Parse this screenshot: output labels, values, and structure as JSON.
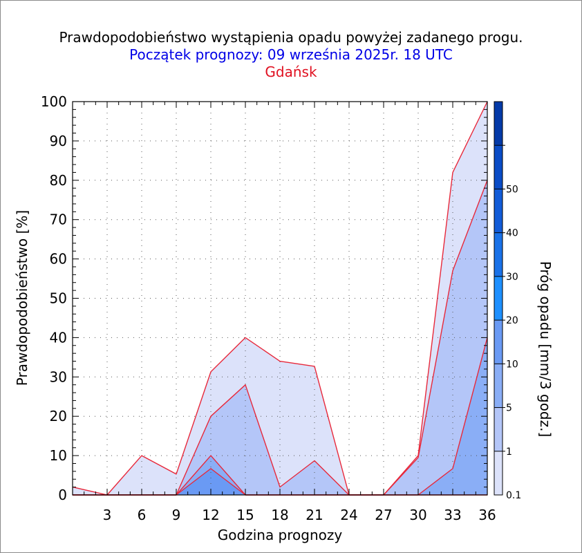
{
  "header": {
    "title": "Prawdopodobieństwo wystąpienia opadu powyżej zadanego progu.",
    "subtitle": "Początek prognozy: 09 września 2025r. 18 UTC",
    "station": "Gdańsk"
  },
  "chart_data": {
    "type": "area",
    "title": "Prawdopodobieństwo wystąpienia opadu powyżej zadanego progu.",
    "subtitle": "Początek prognozy: 09 września 2025r. 18 UTC",
    "xlabel": "Godzina prognozy",
    "ylabel": "Prawdopodobieństwo [%]",
    "xlim": [
      0,
      36
    ],
    "ylim": [
      0,
      100
    ],
    "x_ticks": [
      3,
      6,
      9,
      12,
      15,
      18,
      21,
      24,
      27,
      30,
      33,
      36
    ],
    "y_ticks": [
      0,
      10,
      20,
      30,
      40,
      50,
      60,
      70,
      80,
      90,
      100
    ],
    "grid": true,
    "x": [
      0,
      3,
      6,
      9,
      12,
      15,
      18,
      21,
      24,
      27,
      30,
      33,
      36
    ],
    "series": [
      {
        "name": "0.1",
        "color": "#dce2fa",
        "values": [
          2,
          0,
          10,
          5.3,
          31.3,
          40,
          34,
          32.7,
          0,
          0,
          10,
          82,
          100
        ]
      },
      {
        "name": "1",
        "color": "#b4c6f8",
        "values": [
          0,
          0,
          0,
          0,
          20,
          28,
          2,
          8.7,
          0,
          0,
          9.5,
          57,
          80
        ]
      },
      {
        "name": "5",
        "color": "#8aaef6",
        "values": [
          0,
          0,
          0,
          0,
          10,
          0,
          0,
          0,
          0,
          0,
          0,
          6.7,
          40
        ]
      },
      {
        "name": "10",
        "color": "#6a9af4",
        "values": [
          0,
          0,
          0,
          0,
          6.7,
          0,
          0,
          0,
          0,
          0,
          0,
          0,
          0
        ]
      }
    ],
    "colorbar": {
      "label": "Próg opadu [mm/3 godz.]",
      "levels": [
        {
          "label": "0.1",
          "color": "#dce2fa"
        },
        {
          "label": "1",
          "color": "#b4c6f8"
        },
        {
          "label": "5",
          "color": "#8aaef6"
        },
        {
          "label": "10",
          "color": "#6a9af4"
        },
        {
          "label": "20",
          "color": "#1e90ff"
        },
        {
          "label": "30",
          "color": "#1a72e8"
        },
        {
          "label": "40",
          "color": "#125cd8"
        },
        {
          "label": "50",
          "color": "#0a4cc6"
        },
        {
          "label": "",
          "color": "#043aa8"
        }
      ]
    }
  }
}
